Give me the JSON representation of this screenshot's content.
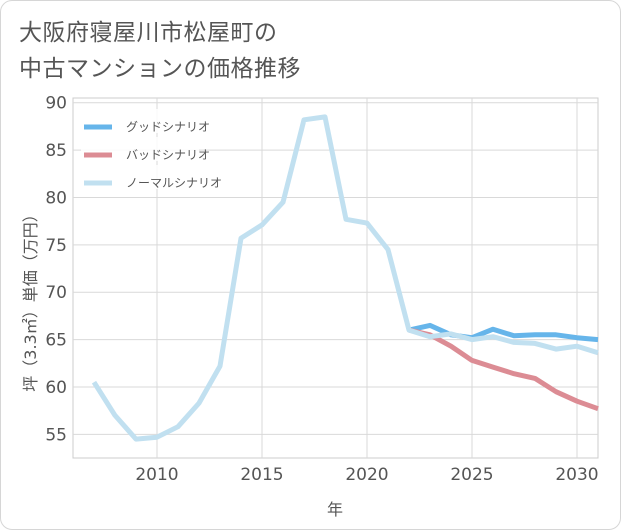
{
  "title_line1": "大阪府寝屋川市松屋町の",
  "title_line2": "中古マンションの価格推移",
  "chart_data": {
    "type": "line",
    "xlabel": "年",
    "ylabel": "坪（3.3㎡）単価（万円）",
    "xlim": [
      2006,
      2031
    ],
    "ylim": [
      52.5,
      90.5
    ],
    "xticks": [
      2010,
      2015,
      2020,
      2025,
      2030
    ],
    "yticks": [
      55,
      60,
      65,
      70,
      75,
      80,
      85,
      90
    ],
    "grid": true,
    "legend_position": "top-left",
    "series": [
      {
        "name": "グッドシナリオ",
        "color": "#66b5ea",
        "x": [
          2022,
          2023,
          2024,
          2025,
          2026,
          2027,
          2028,
          2029,
          2030,
          2031
        ],
        "y": [
          66.0,
          66.5,
          65.5,
          65.2,
          66.1,
          65.4,
          65.5,
          65.5,
          65.2,
          65.0
        ]
      },
      {
        "name": "バッドシナリオ",
        "color": "#dc8c94",
        "x": [
          2022,
          2023,
          2024,
          2025,
          2026,
          2027,
          2028,
          2029,
          2030,
          2031
        ],
        "y": [
          66.0,
          65.5,
          64.3,
          62.8,
          62.1,
          61.4,
          60.9,
          59.5,
          58.5,
          57.7
        ]
      },
      {
        "name": "ノーマルシナリオ",
        "color": "#c1e0f0",
        "x": [
          2007,
          2008,
          2009,
          2010,
          2011,
          2012,
          2013,
          2014,
          2015,
          2016,
          2017,
          2018,
          2019,
          2020,
          2021,
          2022,
          2023,
          2024,
          2025,
          2026,
          2027,
          2028,
          2029,
          2030,
          2031
        ],
        "y": [
          60.5,
          57.0,
          54.5,
          54.7,
          55.8,
          58.3,
          62.2,
          75.7,
          77.1,
          79.5,
          88.2,
          88.5,
          77.7,
          77.3,
          74.5,
          66.0,
          65.3,
          65.6,
          65.0,
          65.3,
          64.7,
          64.6,
          64.0,
          64.3,
          63.6
        ]
      }
    ]
  }
}
